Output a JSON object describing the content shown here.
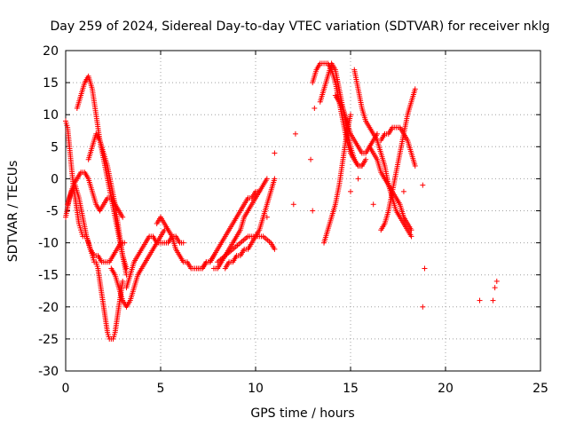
{
  "chart_data": {
    "type": "scatter",
    "title": "Day 259 of 2024, Sidereal Day-to-day VTEC variation (SDTVAR) for receiver nklg",
    "xlabel": "GPS time / hours",
    "ylabel": "SDTVAR / TECUs",
    "xlim": [
      0,
      25
    ],
    "ylim": [
      -30,
      20
    ],
    "xticks": [
      0,
      5,
      10,
      15,
      20,
      25
    ],
    "yticks": [
      -30,
      -25,
      -20,
      -15,
      -10,
      -5,
      0,
      5,
      10,
      15,
      20
    ],
    "grid": true,
    "marker": "+",
    "color": "#ff0000",
    "series": [
      {
        "name": "trace-1",
        "x": [
          0.0,
          0.1,
          0.2,
          0.3,
          0.4,
          0.5,
          0.6,
          0.7,
          0.8,
          0.9,
          1.0,
          1.1,
          1.2,
          1.3,
          1.4,
          1.5,
          1.6,
          1.7,
          1.8,
          1.9,
          2.0,
          2.1,
          2.2,
          2.3,
          2.4,
          2.5,
          2.6,
          2.7,
          2.8,
          2.9,
          3.0
        ],
        "y": [
          9,
          8,
          5,
          2,
          -1,
          -3,
          -5,
          -7,
          -8,
          -9,
          -9,
          -9,
          -10,
          -11,
          -12,
          -13,
          -13,
          -14,
          -16,
          -18,
          -20,
          -22,
          -24,
          -25,
          -25,
          -25,
          -24,
          -22,
          -20,
          -18,
          -16
        ]
      },
      {
        "name": "trace-2",
        "x": [
          0.0,
          0.2,
          0.4,
          0.6,
          0.8,
          1.0,
          1.2,
          1.4,
          1.6,
          1.8,
          2.0,
          2.2,
          2.4,
          2.6,
          2.8,
          3.0
        ],
        "y": [
          -6,
          -3,
          -1,
          0,
          1,
          1,
          0,
          -2,
          -4,
          -5,
          -4,
          -3,
          -3,
          -4,
          -5,
          -6
        ]
      },
      {
        "name": "trace-3",
        "x": [
          0.1,
          0.3,
          0.5,
          0.7,
          0.9,
          1.1,
          1.3,
          1.5,
          1.7,
          1.9,
          2.1,
          2.3,
          2.5,
          2.7,
          2.9,
          3.1
        ],
        "y": [
          -4,
          -2,
          -1,
          -3,
          -6,
          -9,
          -11,
          -12,
          -12,
          -13,
          -13,
          -13,
          -12,
          -11,
          -10,
          -10
        ]
      },
      {
        "name": "trace-4",
        "x": [
          0.6,
          0.8,
          1.0,
          1.2,
          1.4,
          1.6,
          1.8,
          2.0,
          2.2,
          2.4,
          2.6,
          2.8,
          3.0,
          3.2
        ],
        "y": [
          11,
          13,
          15,
          16,
          14,
          10,
          6,
          3,
          0,
          -3,
          -6,
          -9,
          -12,
          -15
        ]
      },
      {
        "name": "trace-5",
        "x": [
          1.2,
          1.4,
          1.6,
          1.8,
          2.0,
          2.2,
          2.4,
          2.6,
          2.8,
          3.0,
          3.2
        ],
        "y": [
          3,
          5,
          7,
          6,
          4,
          2,
          -1,
          -4,
          -8,
          -12,
          -14
        ]
      },
      {
        "name": "trace-6",
        "x": [
          2.4,
          2.6,
          2.8,
          3.0,
          3.2,
          3.4,
          3.6,
          3.8,
          4.0,
          4.2,
          4.4,
          4.6,
          4.8,
          5.0,
          5.2
        ],
        "y": [
          -14,
          -15,
          -17,
          -19,
          -20,
          -19,
          -17,
          -15,
          -14,
          -13,
          -12,
          -11,
          -10,
          -9,
          -8
        ]
      },
      {
        "name": "trace-7",
        "x": [
          3.2,
          3.4,
          3.6,
          3.8,
          4.0,
          4.2,
          4.4,
          4.6,
          4.8,
          5.0,
          5.2,
          5.4,
          5.6,
          5.8,
          6.0,
          6.2
        ],
        "y": [
          -17,
          -15,
          -13,
          -12,
          -11,
          -10,
          -9,
          -9,
          -10,
          -10,
          -10,
          -10,
          -9,
          -9,
          -10,
          -10
        ]
      },
      {
        "name": "trace-8",
        "x": [
          4.8,
          5.0,
          5.2,
          5.4,
          5.6,
          5.8,
          6.0,
          6.2,
          6.4,
          6.6,
          6.8,
          7.0,
          7.2,
          7.4,
          7.6,
          7.8
        ],
        "y": [
          -7,
          -6,
          -7,
          -8,
          -9,
          -11,
          -12,
          -13,
          -13,
          -14,
          -14,
          -14,
          -14,
          -13,
          -13,
          -12
        ]
      },
      {
        "name": "trace-9",
        "x": [
          6.8,
          7.0,
          7.2,
          7.4,
          7.6,
          7.8,
          8.0,
          8.2,
          8.4,
          8.6,
          8.8,
          9.0,
          9.2,
          9.4,
          9.6,
          9.8,
          10.0,
          10.2
        ],
        "y": [
          -14,
          -14,
          -14,
          -13,
          -13,
          -12,
          -11,
          -10,
          -9,
          -8,
          -7,
          -6,
          -5,
          -4,
          -3,
          -3,
          -2,
          -2
        ]
      },
      {
        "name": "trace-10",
        "x": [
          7.8,
          8.0,
          8.2,
          8.4,
          8.6,
          8.8,
          9.0,
          9.2,
          9.4,
          9.6,
          9.8,
          10.0,
          10.2,
          10.4,
          10.6
        ],
        "y": [
          -14,
          -14,
          -13,
          -12,
          -11,
          -10,
          -9,
          -8,
          -6,
          -5,
          -4,
          -3,
          -2,
          -1,
          0
        ]
      },
      {
        "name": "trace-11",
        "x": [
          8.4,
          8.6,
          8.8,
          9.0,
          9.2,
          9.4,
          9.6,
          9.8,
          10.0,
          10.2,
          10.4,
          10.6,
          10.8,
          11.0
        ],
        "y": [
          -14,
          -13,
          -13,
          -12,
          -12,
          -11,
          -11,
          -10,
          -9,
          -8,
          -6,
          -4,
          -2,
          0
        ]
      },
      {
        "name": "trace-12",
        "x": [
          8.0,
          8.4,
          8.8,
          9.2,
          9.6,
          10.0,
          10.4,
          10.8,
          11.0
        ],
        "y": [
          -13,
          -12,
          -11,
          -10,
          -9,
          -9,
          -9,
          -10,
          -11
        ]
      },
      {
        "name": "trace-13",
        "x": [
          13.0,
          13.2,
          13.4,
          13.6,
          13.8,
          14.0,
          14.2,
          14.4,
          14.6,
          14.8,
          15.0,
          15.2,
          15.4,
          15.6,
          15.8
        ],
        "y": [
          15,
          17,
          18,
          18,
          18,
          17,
          15,
          12,
          9,
          6,
          4,
          3,
          2,
          2,
          3
        ]
      },
      {
        "name": "trace-14",
        "x": [
          13.4,
          13.6,
          13.8,
          14.0,
          14.2,
          14.4,
          14.6,
          14.8,
          15.0,
          15.2,
          15.4,
          15.6
        ],
        "y": [
          12,
          14,
          16,
          18,
          17,
          14,
          11,
          8,
          5,
          3,
          2,
          2
        ]
      },
      {
        "name": "trace-15",
        "x": [
          13.6,
          13.8,
          14.0,
          14.2,
          14.4,
          14.6,
          14.8,
          15.0
        ],
        "y": [
          -10,
          -8,
          -6,
          -4,
          -1,
          3,
          7,
          10
        ]
      },
      {
        "name": "trace-16",
        "x": [
          14.2,
          14.4,
          14.6,
          14.8,
          15.0,
          15.2,
          15.4,
          15.6,
          15.8,
          16.0,
          16.2,
          16.4
        ],
        "y": [
          13,
          12,
          11,
          9,
          7,
          6,
          5,
          4,
          4,
          5,
          6,
          7
        ]
      },
      {
        "name": "trace-17",
        "x": [
          15.2,
          15.4,
          15.6,
          15.8,
          16.0,
          16.2,
          16.4,
          16.6,
          16.8,
          17.0,
          17.2,
          17.4,
          17.6,
          17.8,
          18.0,
          18.2
        ],
        "y": [
          17,
          14,
          11,
          9,
          8,
          7,
          6,
          4,
          2,
          -1,
          -3,
          -5,
          -6,
          -7,
          -8,
          -9
        ]
      },
      {
        "name": "trace-18",
        "x": [
          16.0,
          16.2,
          16.4,
          16.6,
          16.8,
          17.0,
          17.2,
          17.4,
          17.6,
          17.8,
          18.0,
          18.2
        ],
        "y": [
          5,
          4,
          3,
          1,
          0,
          -1,
          -2,
          -3,
          -4,
          -6,
          -7,
          -8
        ]
      },
      {
        "name": "trace-19",
        "x": [
          16.6,
          16.8,
          17.0,
          17.2,
          17.4,
          17.6,
          17.8,
          18.0,
          18.2,
          18.4
        ],
        "y": [
          -8,
          -7,
          -5,
          -2,
          1,
          4,
          7,
          10,
          12,
          14
        ]
      },
      {
        "name": "trace-20",
        "x": [
          16.6,
          16.8,
          17.0,
          17.2,
          17.4,
          17.6,
          17.8,
          18.0,
          18.2,
          18.4
        ],
        "y": [
          6,
          7,
          7,
          8,
          8,
          8,
          7,
          6,
          4,
          2
        ]
      },
      {
        "name": "isolated",
        "x": [
          10.6,
          11.0,
          12.0,
          12.1,
          12.9,
          13.0,
          13.1,
          15.0,
          15.4,
          16.2,
          17.8,
          18.8,
          18.9,
          18.8,
          21.8,
          22.5,
          22.6,
          22.7
        ],
        "y": [
          -6,
          4,
          -4,
          7,
          3,
          -5,
          11,
          -2,
          0,
          -4,
          -2,
          -1,
          -14,
          -20,
          -19,
          -19,
          -17,
          -16
        ]
      }
    ]
  }
}
